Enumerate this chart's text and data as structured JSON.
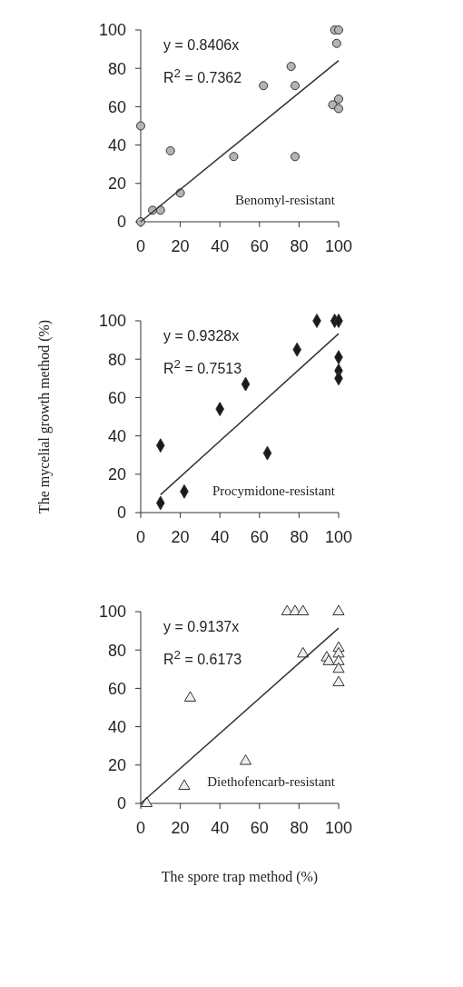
{
  "chart_data": [
    {
      "type": "scatter",
      "marker": "circle",
      "xlim": [
        0,
        100
      ],
      "xticks": [
        0,
        20,
        40,
        60,
        80,
        100
      ],
      "ylim": [
        0,
        100
      ],
      "yticks": [
        0,
        20,
        40,
        60,
        80,
        100
      ],
      "grid": false,
      "legend": false,
      "annotations": [
        "y = 0.8406x",
        "R$^{2}$ = 0.7362",
        "Benomyl-resistant"
      ],
      "series": [
        {
          "color": "#b4b4b4",
          "x": [
            0,
            0,
            6,
            10,
            15,
            20,
            47,
            62,
            76,
            78,
            78,
            97,
            98,
            100,
            99,
            100,
            100
          ],
          "values": [
            50,
            0,
            6,
            6,
            37,
            15,
            34,
            71,
            81,
            34,
            71,
            61,
            100,
            100,
            93,
            64,
            59
          ]
        },
        {
          "type": "line",
          "marker": "none",
          "color": "#333333",
          "x": [
            0,
            100
          ],
          "values": [
            0,
            84.1
          ]
        }
      ]
    },
    {
      "type": "scatter",
      "marker": "diamond",
      "xlim": [
        0,
        100
      ],
      "xticks": [
        0,
        20,
        40,
        60,
        80,
        100
      ],
      "ylim": [
        0,
        100
      ],
      "yticks": [
        0,
        20,
        40,
        60,
        80,
        100
      ],
      "grid": false,
      "legend": false,
      "ylabel": "The mycelial growth method (%)",
      "annotations": [
        "y = 0.9328x",
        "R$^{2}$ = 0.7513",
        "Procymidone-resistant"
      ],
      "series": [
        {
          "color": "#1a1a1a",
          "x": [
            10,
            10,
            22,
            40,
            53,
            64,
            79,
            89,
            98,
            100,
            100,
            100,
            100
          ],
          "values": [
            35,
            5,
            11,
            54,
            67,
            31,
            85,
            100,
            100,
            100,
            81,
            74,
            70
          ]
        },
        {
          "type": "line",
          "marker": "none",
          "color": "#333333",
          "x": [
            10,
            100
          ],
          "values": [
            9.3,
            93.3
          ]
        }
      ]
    },
    {
      "type": "scatter",
      "marker": "triangle",
      "xlim": [
        0,
        100
      ],
      "xticks": [
        0,
        20,
        40,
        60,
        80,
        100
      ],
      "ylim": [
        0,
        100
      ],
      "yticks": [
        0,
        20,
        40,
        60,
        80,
        100
      ],
      "grid": false,
      "legend": false,
      "xlabel": "The spore trap method (%)",
      "annotations": [
        "y = 0.9137x",
        "R$^{2}$ = 0.6173",
        "Diethofencarb-resistant"
      ],
      "series": [
        {
          "color": "#eeeeee",
          "x": [
            3,
            22,
            25,
            53,
            74,
            78,
            82,
            82,
            94,
            95,
            100,
            100,
            100,
            100,
            100,
            100
          ],
          "values": [
            0,
            9,
            55,
            22,
            100,
            100,
            100,
            78,
            76,
            74,
            100,
            81,
            78,
            74,
            70,
            63
          ]
        },
        {
          "type": "line",
          "marker": "none",
          "color": "#333333",
          "x": [
            0,
            100
          ],
          "values": [
            0,
            91.4
          ]
        }
      ]
    }
  ]
}
